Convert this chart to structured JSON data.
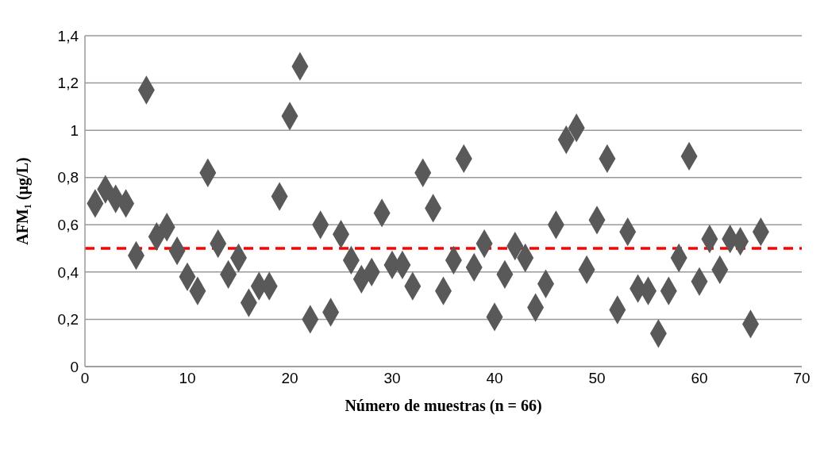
{
  "chart_data": {
    "type": "scatter",
    "xlabel": "Número de muestras (n = 66)",
    "ylabel": "AFM₁ (µg/L)",
    "x": [
      1,
      2,
      3,
      4,
      5,
      6,
      7,
      8,
      9,
      10,
      11,
      12,
      13,
      14,
      15,
      16,
      17,
      18,
      19,
      20,
      21,
      22,
      23,
      24,
      25,
      26,
      27,
      28,
      29,
      30,
      31,
      32,
      33,
      34,
      35,
      36,
      37,
      38,
      39,
      40,
      41,
      42,
      43,
      44,
      45,
      46,
      47,
      48,
      49,
      50,
      51,
      52,
      53,
      54,
      55,
      56,
      57,
      58,
      59,
      60,
      61,
      62,
      63,
      64,
      65,
      66
    ],
    "series": [
      {
        "color": "#595959",
        "values": [
          0.69,
          0.75,
          0.71,
          0.69,
          0.47,
          1.17,
          0.55,
          0.59,
          0.49,
          0.38,
          0.32,
          0.82,
          0.52,
          0.39,
          0.46,
          0.27,
          0.34,
          0.34,
          0.72,
          1.06,
          1.27,
          0.2,
          0.6,
          0.23,
          0.56,
          0.45,
          0.37,
          0.4,
          0.65,
          0.43,
          0.43,
          0.34,
          0.82,
          0.67,
          0.32,
          0.45,
          0.88,
          0.42,
          0.52,
          0.21,
          0.39,
          0.51,
          0.46,
          0.25,
          0.35,
          0.6,
          0.96,
          1.01,
          0.41,
          0.62,
          0.88,
          0.24,
          0.57,
          0.33,
          0.32,
          0.14,
          0.32,
          0.46,
          0.89,
          0.36,
          0.54,
          0.41,
          0.54,
          0.53,
          0.18,
          0.57
        ]
      }
    ],
    "xlim": [
      0,
      70
    ],
    "xticks": [
      0,
      10,
      20,
      30,
      40,
      50,
      60,
      70
    ],
    "ylim": [
      0,
      1.4
    ],
    "yticks": [
      0,
      {
        "value": 0.2,
        "label": "0,2"
      },
      {
        "value": 0.4,
        "label": "0,4"
      },
      {
        "value": 0.6,
        "label": "0,6"
      },
      {
        "value": 0.8,
        "label": "0,8"
      },
      1,
      {
        "value": 1.2,
        "label": "1,2"
      },
      {
        "value": 1.4,
        "label": "1,4"
      }
    ],
    "ref_lines": [
      {
        "axis": "y",
        "value": 0.5,
        "color": "#ff0000",
        "line_style": "dashed"
      }
    ],
    "grid": "y",
    "marker": "diamond",
    "legend": false
  }
}
